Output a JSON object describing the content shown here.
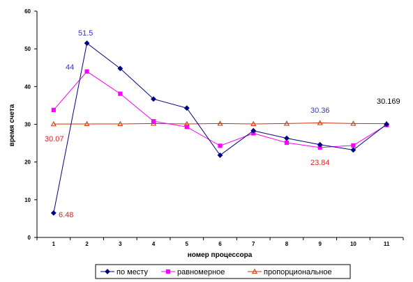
{
  "chart_data": {
    "type": "line",
    "xlabel": "номер процессора",
    "ylabel": "время счета",
    "categories": [
      "1",
      "2",
      "3",
      "4",
      "5",
      "6",
      "7",
      "8",
      "9",
      "10",
      "11"
    ],
    "ylim": [
      0,
      60
    ],
    "yticks": [
      "0",
      "10",
      "20",
      "30",
      "40",
      "50",
      "60"
    ],
    "grid": false,
    "legend_position": "bottom",
    "series": [
      {
        "name": "по месту",
        "color": "#000080",
        "marker": "diamond",
        "values": [
          6.48,
          51.5,
          44.8,
          36.7,
          34.3,
          21.8,
          28.3,
          26.3,
          24.6,
          23.2,
          30.0
        ]
      },
      {
        "name": "равномерное",
        "color": "#ff00ff",
        "marker": "square",
        "values": [
          33.8,
          44.0,
          38.1,
          30.8,
          29.3,
          24.3,
          27.6,
          25.1,
          23.84,
          24.4,
          29.8
        ]
      },
      {
        "name": "пропорциональное",
        "color": "#cc3300",
        "marker": "triangle",
        "values": [
          30.07,
          30.1,
          30.1,
          30.2,
          30.1,
          30.2,
          30.1,
          30.2,
          30.36,
          30.2,
          30.169
        ]
      }
    ],
    "annotations": [
      {
        "text": "51.5",
        "color": "#3333cc"
      },
      {
        "text": "44",
        "color": "#3333cc"
      },
      {
        "text": "30.36",
        "color": "#3333cc"
      },
      {
        "text": "30.169",
        "color": "#000000"
      },
      {
        "text": "30.07",
        "color": "#dd2222"
      },
      {
        "text": "23.84",
        "color": "#dd2222"
      },
      {
        "text": "6.48",
        "color": "#dd2222"
      }
    ]
  }
}
